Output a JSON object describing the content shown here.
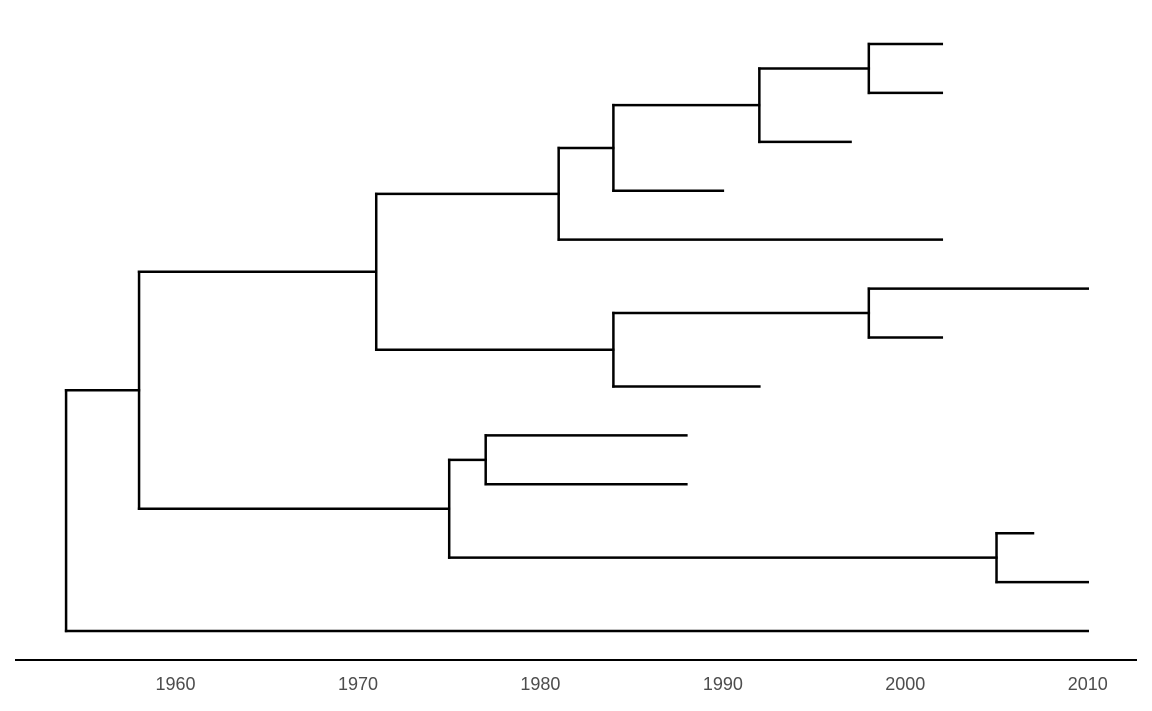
{
  "chart_data": {
    "type": "tree",
    "xlim": [
      1951.2,
      2012.7
    ],
    "xticks": [
      1960,
      1970,
      1980,
      1990,
      2000,
      2010
    ],
    "color": "#000000",
    "tree": {
      "time": 1954,
      "children": [
        {
          "time": 1958,
          "children": [
            {
              "time": 1971,
              "children": [
                {
                  "time": 1981,
                  "children": [
                    {
                      "time": 1984,
                      "children": [
                        {
                          "time": 1992,
                          "children": [
                            {
                              "time": 1998,
                              "children": [
                                {
                                  "time": 2002
                                },
                                {
                                  "time": 2002
                                }
                              ]
                            },
                            {
                              "time": 1997
                            }
                          ]
                        },
                        {
                          "time": 1990
                        }
                      ]
                    },
                    {
                      "time": 2002
                    }
                  ]
                },
                {
                  "time": 1984,
                  "children": [
                    {
                      "time": 1998,
                      "children": [
                        {
                          "time": 2010
                        },
                        {
                          "time": 2002
                        }
                      ]
                    },
                    {
                      "time": 1992
                    }
                  ]
                }
              ]
            },
            {
              "time": 1975,
              "children": [
                {
                  "time": 1977,
                  "children": [
                    {
                      "time": 1988
                    },
                    {
                      "time": 1988
                    }
                  ]
                },
                {
                  "time": 2005,
                  "children": [
                    {
                      "time": 2007
                    },
                    {
                      "time": 2010
                    }
                  ]
                }
              ]
            }
          ]
        },
        {
          "time": 2010
        }
      ]
    }
  }
}
